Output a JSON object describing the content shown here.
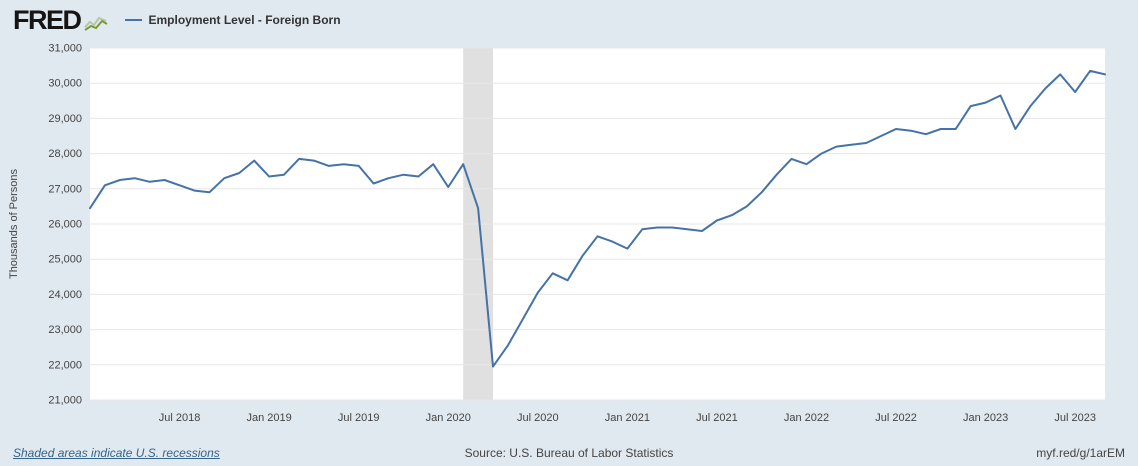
{
  "header": {
    "logo_text": "FRED",
    "legend": {
      "label": "Employment Level - Foreign Born",
      "color": "#4572a7"
    }
  },
  "chart_data": {
    "type": "line",
    "title": "Employment Level - Foreign Born",
    "ylabel": "Thousands of Persons",
    "units": "Thousands of Persons",
    "ylim": [
      21000,
      31000
    ],
    "grid": true,
    "grid_color": "#e7e7e7",
    "plot_background": "#ffffff",
    "page_background": "#e1e9f0",
    "recession_color": "#e0e0e0",
    "y_ticks": [
      {
        "value": 21000,
        "label": "21,000"
      },
      {
        "value": 22000,
        "label": "22,000"
      },
      {
        "value": 23000,
        "label": "23,000"
      },
      {
        "value": 24000,
        "label": "24,000"
      },
      {
        "value": 25000,
        "label": "25,000"
      },
      {
        "value": 26000,
        "label": "26,000"
      },
      {
        "value": 27000,
        "label": "27,000"
      },
      {
        "value": 28000,
        "label": "28,000"
      },
      {
        "value": 29000,
        "label": "29,000"
      },
      {
        "value": 30000,
        "label": "30,000"
      },
      {
        "value": 31000,
        "label": "31,000"
      }
    ],
    "x_ticks": [
      {
        "month_index": 6,
        "label": "Jul 2018"
      },
      {
        "month_index": 12,
        "label": "Jan 2019"
      },
      {
        "month_index": 18,
        "label": "Jul 2019"
      },
      {
        "month_index": 24,
        "label": "Jan 2020"
      },
      {
        "month_index": 30,
        "label": "Jul 2020"
      },
      {
        "month_index": 36,
        "label": "Jan 2021"
      },
      {
        "month_index": 42,
        "label": "Jul 2021"
      },
      {
        "month_index": 48,
        "label": "Jan 2022"
      },
      {
        "month_index": 54,
        "label": "Jul 2022"
      },
      {
        "month_index": 60,
        "label": "Jan 2023"
      },
      {
        "month_index": 66,
        "label": "Jul 2023"
      }
    ],
    "recession_bands": [
      {
        "start_month_index": 25,
        "end_month_index": 27,
        "note": "Feb 2020 - Apr 2020"
      }
    ],
    "series": [
      {
        "name": "Employment Level - Foreign Born",
        "color": "#4572a7",
        "start": "2018-01",
        "end": "2023-09",
        "frequency": "monthly",
        "values": [
          26450,
          27100,
          27250,
          27300,
          27200,
          27250,
          27100,
          26950,
          26900,
          27300,
          27450,
          27800,
          27350,
          27400,
          27850,
          27800,
          27650,
          27700,
          27650,
          27150,
          27300,
          27400,
          27350,
          27700,
          27050,
          27700,
          26450,
          21950,
          22550,
          23300,
          24050,
          24600,
          24400,
          25100,
          25650,
          25500,
          25300,
          25850,
          25900,
          25900,
          25850,
          25800,
          26100,
          26250,
          26500,
          26900,
          27400,
          27850,
          27700,
          28000,
          28200,
          28250,
          28300,
          28500,
          28700,
          28650,
          28550,
          28700,
          28700,
          29350,
          29450,
          29650,
          28700,
          29350,
          29850,
          30250,
          29750,
          30350,
          30250
        ]
      }
    ],
    "legend_position": "top-left"
  },
  "footer": {
    "recession_note": "Shaded areas indicate U.S. recessions",
    "source": "Source: U.S. Bureau of Labor Statistics",
    "permalink": "myf.red/g/1arEM"
  }
}
